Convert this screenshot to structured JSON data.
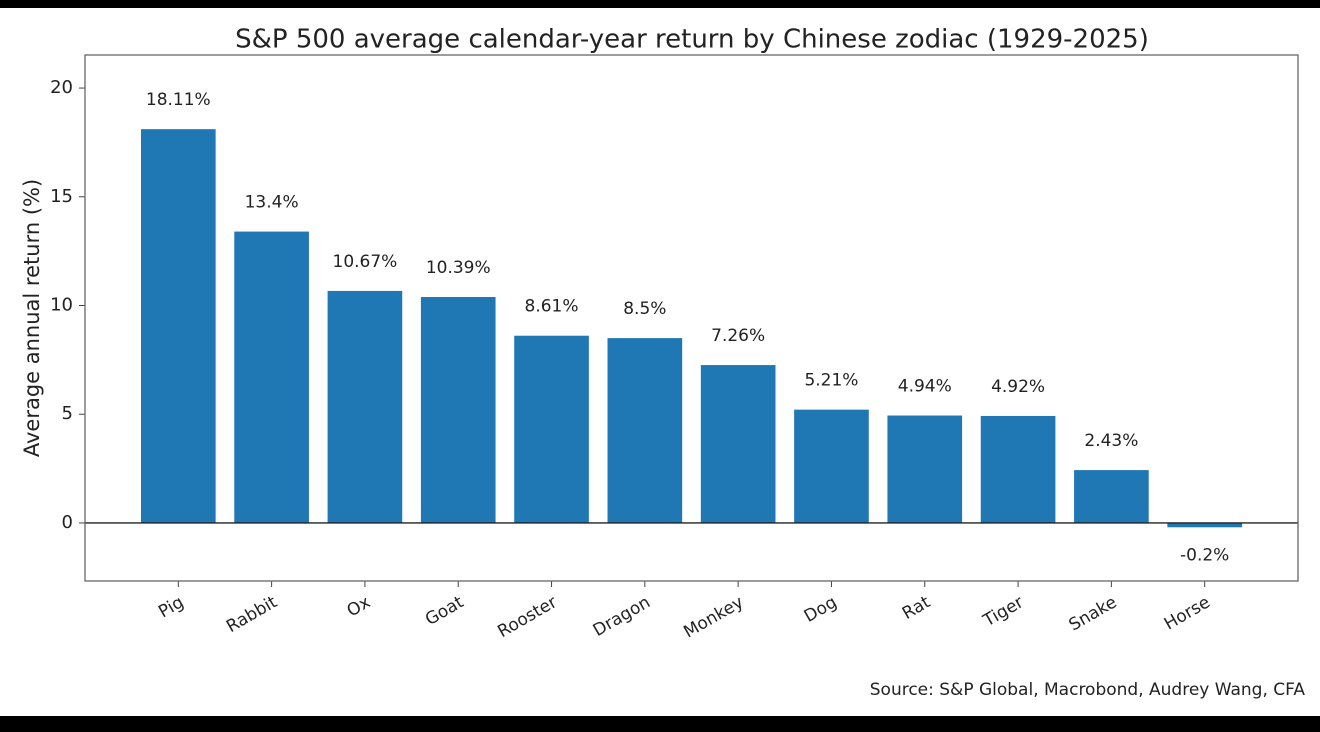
{
  "chart_data": {
    "type": "bar",
    "title": "S&P 500 average calendar-year return by Chinese zodiac (1929-2025)",
    "y_label": "Average annual return (%)",
    "categories": [
      "Pig",
      "Rabbit",
      "Ox",
      "Goat",
      "Rooster",
      "Dragon",
      "Monkey",
      "Dog",
      "Rat",
      "Tiger",
      "Snake",
      "Horse"
    ],
    "values": [
      18.11,
      13.4,
      10.67,
      10.39,
      8.61,
      8.5,
      7.26,
      5.21,
      4.94,
      4.92,
      2.43,
      -0.2
    ],
    "value_labels": [
      "18.11%",
      "13.4%",
      "10.67%",
      "10.39%",
      "8.61%",
      "8.5%",
      "7.26%",
      "5.21%",
      "4.94%",
      "4.92%",
      "2.43%",
      "-0.2%"
    ],
    "color": "#1f77b4",
    "ylim": [
      -2.67,
      21.52
    ],
    "yticks": [
      0,
      5,
      10,
      15,
      20
    ],
    "source": "Source: S&P Global, Macrobond, Audrey Wang, CFA"
  }
}
